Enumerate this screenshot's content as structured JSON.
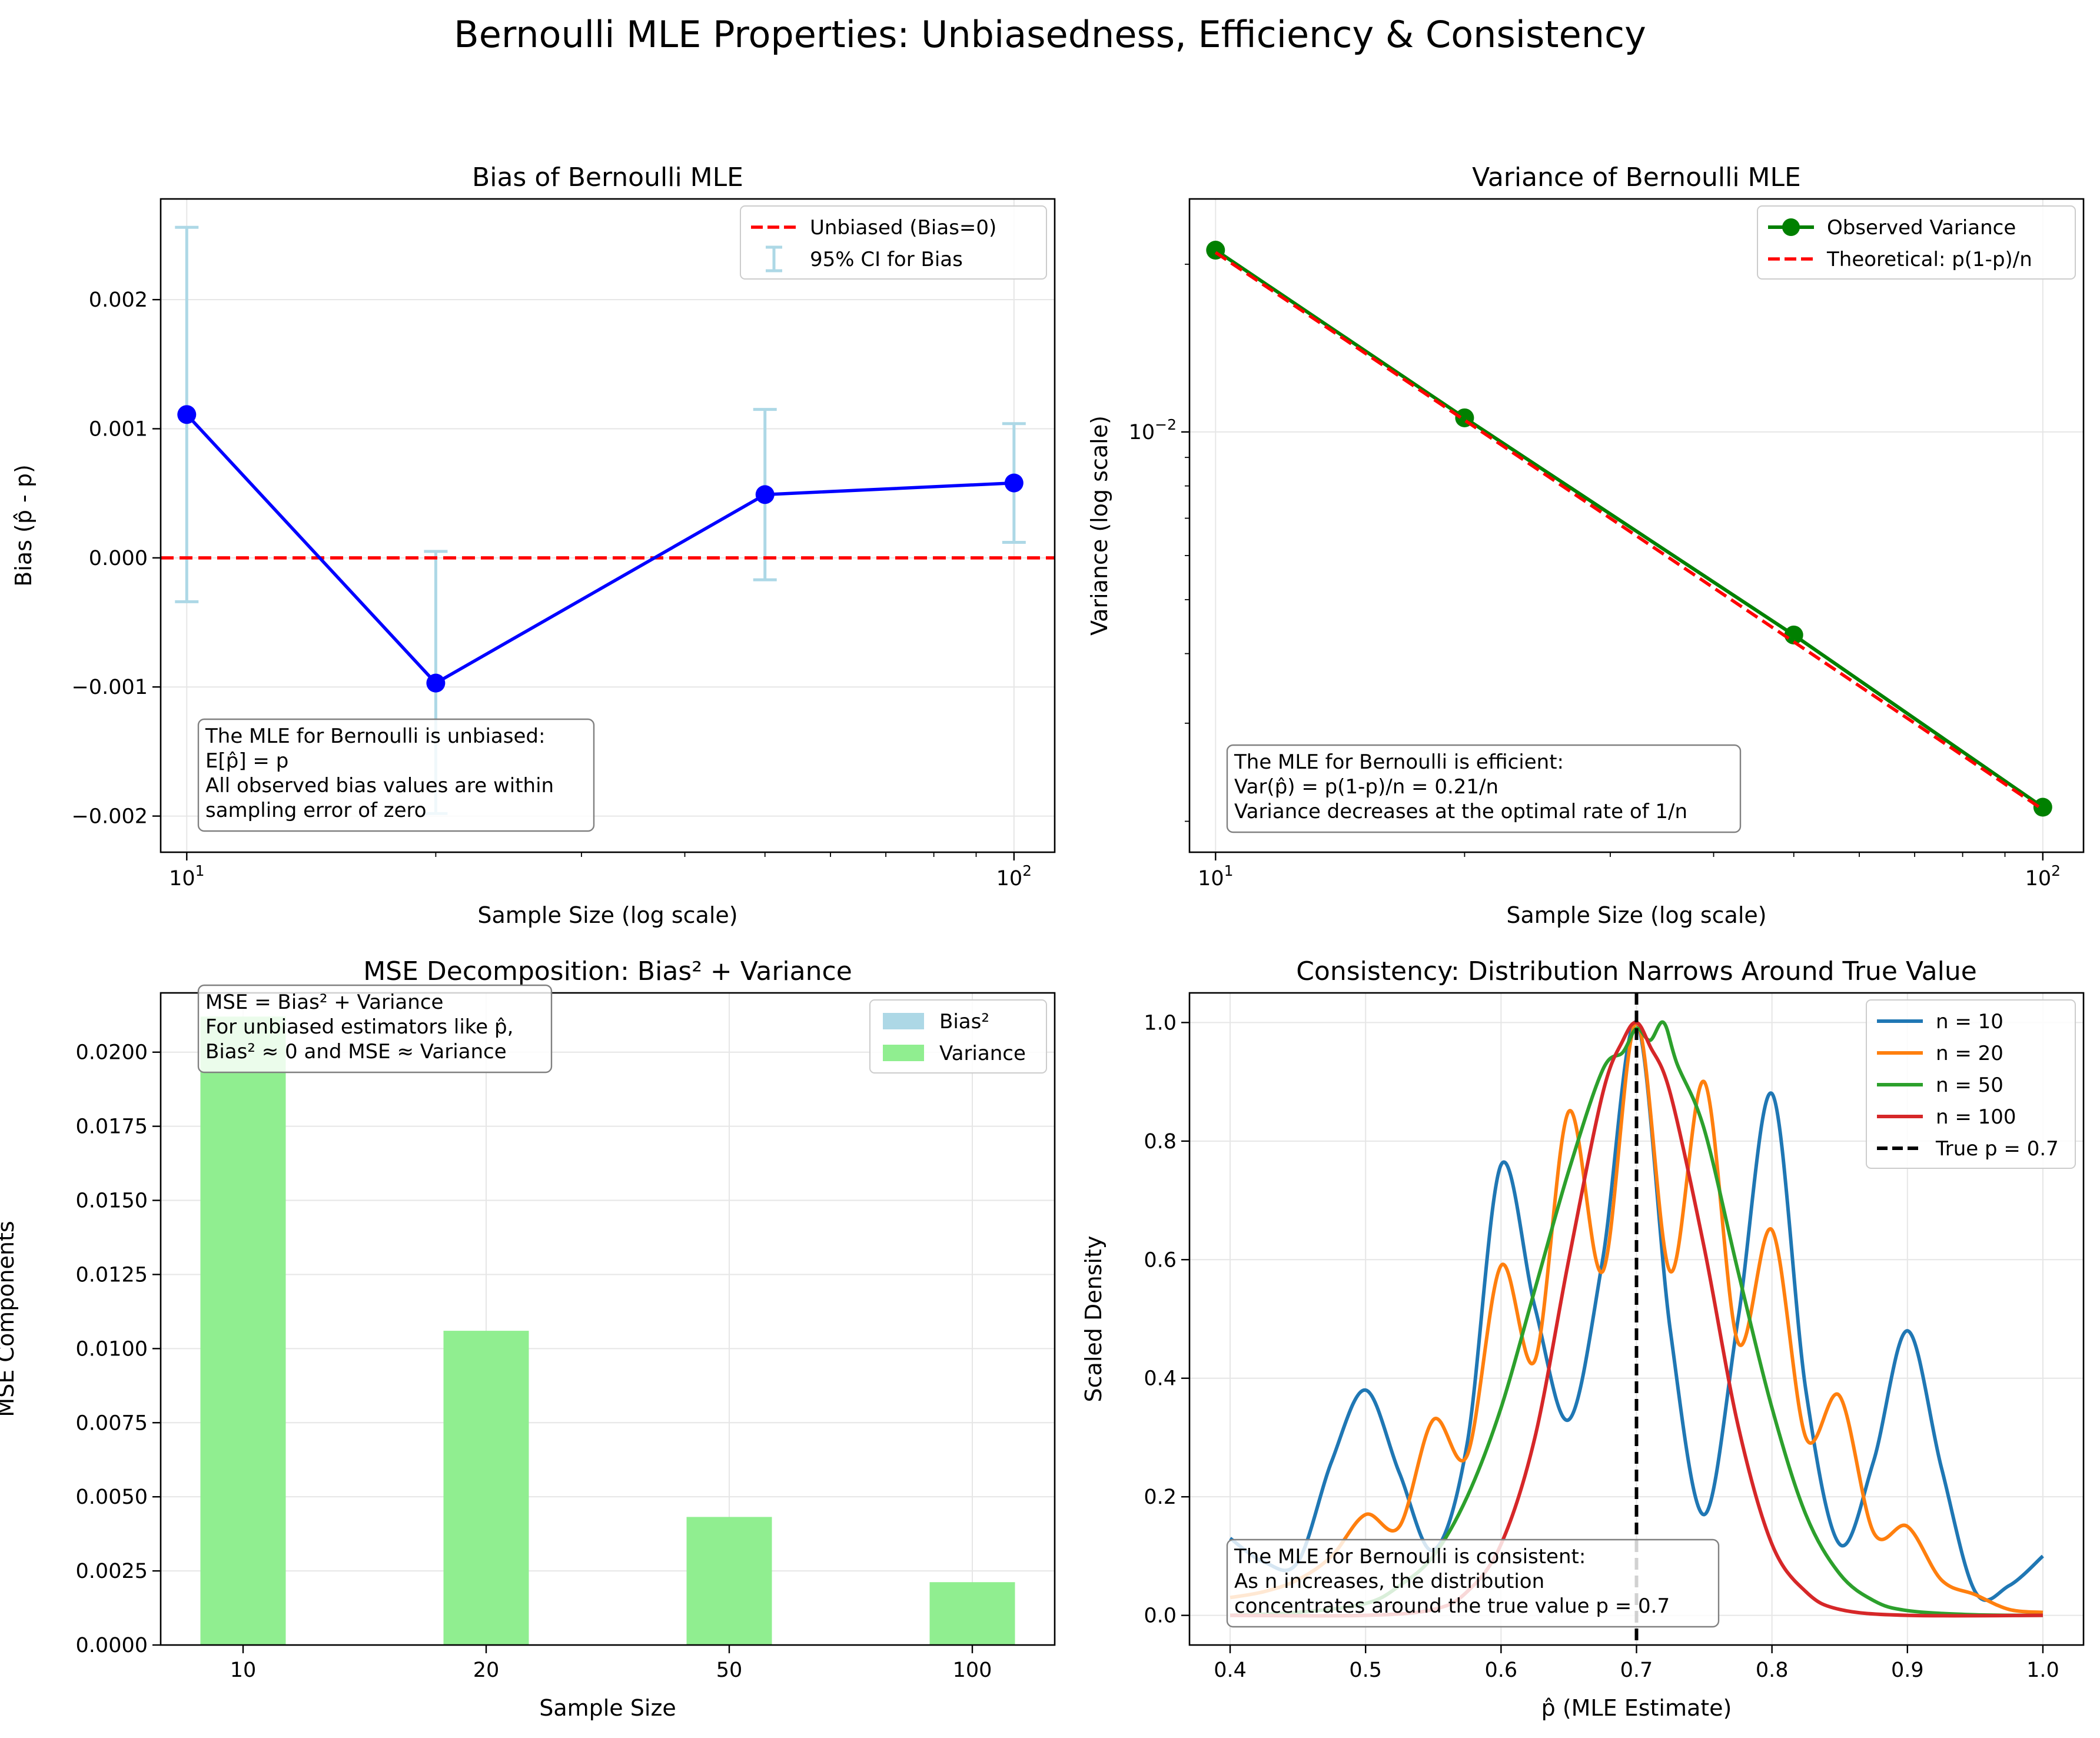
{
  "figure": {
    "title": "Bernoulli MLE Properties: Unbiasedness, Efficiency & Consistency"
  },
  "colors": {
    "blue": "#0000ff",
    "red": "#ff0000",
    "green": "#008000",
    "lightblue": "#add8e6",
    "lightgreen": "#90ee90",
    "tab_blue": "#1f77b4",
    "tab_orange": "#ff7f0e",
    "tab_green": "#2ca02c",
    "tab_red": "#d62728",
    "black": "#000000"
  },
  "chart_data": [
    {
      "id": "bias",
      "type": "line",
      "title": "Bias of Bernoulli MLE",
      "xlabel": "Sample Size (log scale)",
      "ylabel": "Bias (p̂ - p)",
      "xscale": "log",
      "xlim": [
        9.3,
        112
      ],
      "ylim": [
        -0.00228,
        0.00278
      ],
      "xticks": [
        10,
        100
      ],
      "xtick_labels": [
        [
          "10",
          "1"
        ],
        [
          "10",
          "2"
        ]
      ],
      "yticks": [
        -0.002,
        -0.001,
        0.0,
        0.001,
        0.002
      ],
      "ytick_labels": [
        "−0.002",
        "−0.001",
        "0.000",
        "0.001",
        "0.002"
      ],
      "grid": true,
      "legend_position": "top-right",
      "series": [
        {
          "name": "95% CI for Bias",
          "kind": "errorbar",
          "x": [
            10,
            20,
            50,
            100
          ],
          "lower": [
            -0.00034,
            -0.00198,
            -0.00017,
            0.00012
          ],
          "upper": [
            0.00256,
            5e-05,
            0.00115,
            0.00104
          ]
        },
        {
          "name": "",
          "kind": "line",
          "x": [
            10,
            20,
            50,
            100
          ],
          "y": [
            0.00111,
            -0.00097,
            0.00049,
            0.00058
          ]
        },
        {
          "name": "Unbiased (Bias=0)",
          "kind": "hline",
          "y": 0
        }
      ],
      "annotation": [
        "The MLE for Bernoulli is unbiased:",
        "E[p̂] = p",
        "All observed bias values are within",
        "sampling error of zero"
      ]
    },
    {
      "id": "variance",
      "type": "line",
      "title": "Variance of Bernoulli MLE",
      "xlabel": "Sample Size (log scale)",
      "ylabel": "Variance (log scale)",
      "xscale": "log",
      "yscale": "log",
      "xlim": [
        9.3,
        112
      ],
      "ylim": [
        0.00176,
        0.0262
      ],
      "xticks": [
        10,
        100
      ],
      "xtick_labels": [
        [
          "10",
          "1"
        ],
        [
          "10",
          "2"
        ]
      ],
      "yticks": [
        0.01
      ],
      "ytick_labels": [
        [
          "10",
          "−2"
        ]
      ],
      "grid": true,
      "legend_position": "top-right",
      "series": [
        {
          "name": "Observed Variance",
          "kind": "line-marker",
          "x": [
            10,
            20,
            50,
            100
          ],
          "y": [
            0.0212,
            0.0106,
            0.00432,
            0.00212
          ]
        },
        {
          "name": "Theoretical: p(1-p)/n",
          "kind": "dashed",
          "x": [
            10,
            20,
            50,
            100
          ],
          "y": [
            0.021,
            0.0105,
            0.0042,
            0.0021
          ]
        }
      ],
      "annotation": [
        "The MLE for Bernoulli is efficient:",
        "Var(p̂) = p(1-p)/n = 0.21/n",
        "Variance decreases at the optimal rate of 1/n"
      ]
    },
    {
      "id": "mse",
      "type": "bar",
      "title": "MSE Decomposition: Bias² + Variance",
      "xlabel": "Sample Size",
      "ylabel": "MSE Components",
      "categories": [
        "10",
        "20",
        "50",
        "100"
      ],
      "ylim": [
        0,
        0.022
      ],
      "yticks": [
        0,
        0.0025,
        0.005,
        0.0075,
        0.01,
        0.0125,
        0.015,
        0.0175,
        0.02
      ],
      "ytick_labels": [
        "0.0000",
        "0.0025",
        "0.0050",
        "0.0075",
        "0.0100",
        "0.0125",
        "0.0150",
        "0.0175",
        "0.0200"
      ],
      "grid": true,
      "legend_position": "top-right",
      "series": [
        {
          "name": "Bias²",
          "values": [
            1.2e-06,
            9.4e-07,
            2.4e-07,
            3.4e-07
          ]
        },
        {
          "name": "Variance",
          "values": [
            0.0212,
            0.0106,
            0.00432,
            0.00212
          ]
        }
      ],
      "annotation": [
        "MSE = Bias² + Variance",
        "For unbiased estimators like p̂,",
        "Bias² ≈ 0 and MSE ≈ Variance"
      ]
    },
    {
      "id": "consistency",
      "type": "line",
      "title": "Consistency: Distribution Narrows Around True Value",
      "xlabel": "p̂ (MLE Estimate)",
      "ylabel": "Scaled Density",
      "xlim": [
        0.37,
        1.03
      ],
      "ylim": [
        -0.05,
        1.05
      ],
      "xticks": [
        0.4,
        0.5,
        0.6,
        0.7,
        0.8,
        0.9,
        1.0
      ],
      "xtick_labels": [
        "0.4",
        "0.5",
        "0.6",
        "0.7",
        "0.8",
        "0.9",
        "1.0"
      ],
      "yticks": [
        0,
        0.2,
        0.4,
        0.6,
        0.8,
        1.0
      ],
      "ytick_labels": [
        "0.0",
        "0.2",
        "0.4",
        "0.6",
        "0.8",
        "1.0"
      ],
      "grid": true,
      "legend_position": "top-right",
      "series": [
        {
          "name": "n = 10",
          "x": [
            0.4,
            0.425,
            0.45,
            0.475,
            0.5,
            0.525,
            0.55,
            0.575,
            0.6,
            0.625,
            0.65,
            0.675,
            0.7,
            0.725,
            0.75,
            0.775,
            0.8,
            0.825,
            0.85,
            0.875,
            0.9,
            0.925,
            0.95,
            0.975,
            1.0
          ],
          "y": [
            0.13,
            0.09,
            0.09,
            0.26,
            0.38,
            0.24,
            0.11,
            0.29,
            0.76,
            0.52,
            0.33,
            0.6,
            1.0,
            0.48,
            0.17,
            0.5,
            0.88,
            0.38,
            0.12,
            0.26,
            0.48,
            0.25,
            0.04,
            0.05,
            0.1
          ]
        },
        {
          "name": "n = 20",
          "x": [
            0.4,
            0.425,
            0.45,
            0.475,
            0.5,
            0.525,
            0.55,
            0.575,
            0.6,
            0.625,
            0.65,
            0.675,
            0.7,
            0.725,
            0.75,
            0.775,
            0.8,
            0.825,
            0.85,
            0.875,
            0.9,
            0.925,
            0.95,
            0.975,
            1.0
          ],
          "y": [
            0.03,
            0.04,
            0.06,
            0.1,
            0.17,
            0.15,
            0.33,
            0.27,
            0.59,
            0.43,
            0.85,
            0.58,
            1.0,
            0.58,
            0.9,
            0.46,
            0.65,
            0.3,
            0.37,
            0.14,
            0.15,
            0.06,
            0.035,
            0.01,
            0.005
          ]
        },
        {
          "name": "n = 50",
          "x": [
            0.4,
            0.45,
            0.5,
            0.525,
            0.55,
            0.575,
            0.6,
            0.625,
            0.65,
            0.675,
            0.69,
            0.7,
            0.71,
            0.72,
            0.73,
            0.75,
            0.775,
            0.8,
            0.825,
            0.85,
            0.875,
            0.9,
            0.95,
            1.0
          ],
          "y": [
            0.0,
            0.005,
            0.02,
            0.05,
            0.1,
            0.2,
            0.35,
            0.55,
            0.75,
            0.92,
            0.95,
            0.99,
            0.97,
            1.0,
            0.93,
            0.82,
            0.58,
            0.35,
            0.17,
            0.07,
            0.025,
            0.008,
            0.001,
            0.0
          ]
        },
        {
          "name": "n = 100",
          "x": [
            0.4,
            0.5,
            0.55,
            0.575,
            0.6,
            0.625,
            0.65,
            0.675,
            0.69,
            0.7,
            0.71,
            0.725,
            0.75,
            0.775,
            0.8,
            0.825,
            0.85,
            0.9,
            1.0
          ],
          "y": [
            0.0,
            0.0,
            0.01,
            0.04,
            0.12,
            0.3,
            0.6,
            0.88,
            0.97,
            1.0,
            0.96,
            0.88,
            0.62,
            0.32,
            0.12,
            0.04,
            0.01,
            0.0,
            0.0
          ]
        },
        {
          "name": "True p = 0.7",
          "kind": "vline",
          "x": 0.7
        }
      ],
      "annotation": [
        "The MLE for Bernoulli is consistent:",
        "As n increases, the distribution",
        "concentrates around the true value p = 0.7"
      ]
    }
  ]
}
